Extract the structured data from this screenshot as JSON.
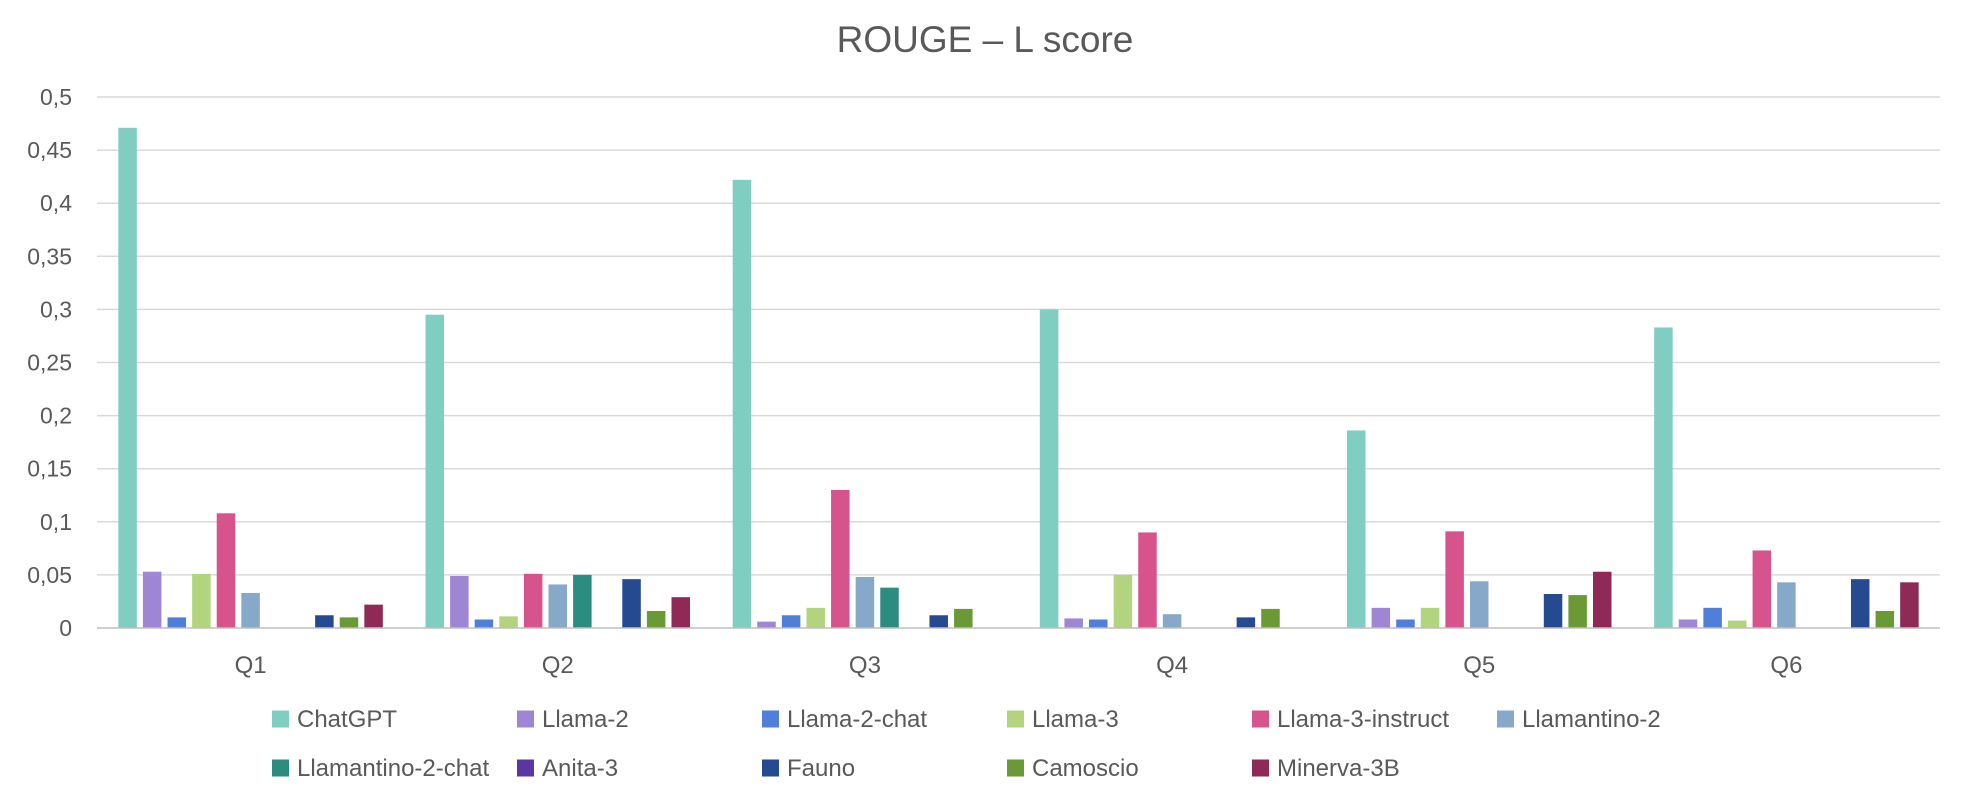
{
  "chart_data": {
    "type": "bar",
    "title": "ROUGE – L score",
    "xlabel": "",
    "ylabel": "",
    "ylim": [
      0,
      0.5
    ],
    "yticks": [
      "0",
      "0,05",
      "0,1",
      "0,15",
      "0,2",
      "0,25",
      "0,3",
      "0,35",
      "0,4",
      "0,45",
      "0,5"
    ],
    "categories": [
      "Q1",
      "Q2",
      "Q3",
      "Q4",
      "Q5",
      "Q6"
    ],
    "grid": true,
    "legend_position": "bottom",
    "series": [
      {
        "name": "ChatGPT",
        "color": "#80cdc1",
        "values": [
          0.471,
          0.295,
          0.422,
          0.3,
          0.186,
          0.283
        ]
      },
      {
        "name": "Llama-2",
        "color": "#9f86d4",
        "values": [
          0.053,
          0.049,
          0.006,
          0.009,
          0.019,
          0.008
        ]
      },
      {
        "name": "Llama-2-chat",
        "color": "#4f7fd9",
        "values": [
          0.01,
          0.008,
          0.012,
          0.008,
          0.008,
          0.019
        ]
      },
      {
        "name": "Llama-3",
        "color": "#b3d47f",
        "values": [
          0.051,
          0.011,
          0.019,
          0.05,
          0.019,
          0.007
        ]
      },
      {
        "name": "Llama-3-instruct",
        "color": "#d6538b",
        "values": [
          0.108,
          0.051,
          0.13,
          0.09,
          0.091,
          0.073
        ]
      },
      {
        "name": "Llamantino-2",
        "color": "#87a9c9",
        "values": [
          0.033,
          0.041,
          0.048,
          0.013,
          0.044,
          0.043
        ]
      },
      {
        "name": "Llamantino-2-chat",
        "color": "#2d8c80",
        "values": [
          0,
          0.05,
          0.038,
          0,
          0,
          0
        ]
      },
      {
        "name": "Anita-3",
        "color": "#5a36a0",
        "values": [
          0,
          0,
          0,
          0,
          0,
          0
        ]
      },
      {
        "name": "Fauno",
        "color": "#254a8f",
        "values": [
          0.012,
          0.046,
          0.012,
          0.01,
          0.032,
          0.046
        ]
      },
      {
        "name": "Camoscio",
        "color": "#6a9a36",
        "values": [
          0.01,
          0.016,
          0.018,
          0.018,
          0.031,
          0.016
        ]
      },
      {
        "name": "Minerva-3B",
        "color": "#8e2a55",
        "values": [
          0.022,
          0.029,
          0,
          0,
          0.053,
          0.043
        ]
      }
    ]
  }
}
